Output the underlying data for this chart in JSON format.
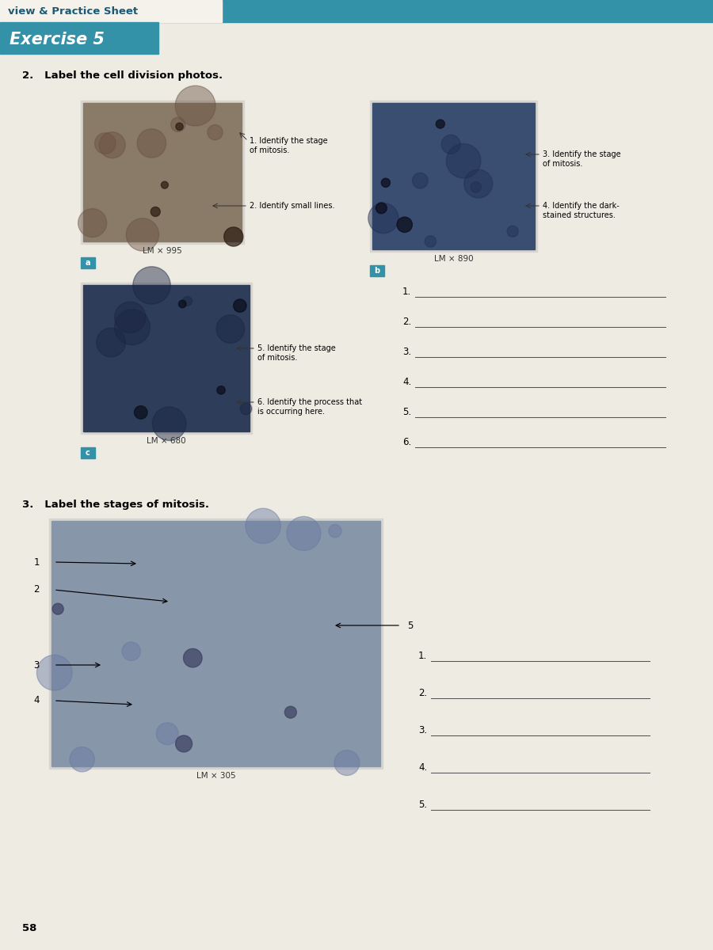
{
  "page_bg": "#eeebe3",
  "header_bg": "#3492a8",
  "header_text": "view & Practice Sheet",
  "exercise_text": "Exercise 5",
  "section2_title": "2.   Label the cell division photos.",
  "section3_title": "3.   Label the stages of mitosis.",
  "img_a_label": "LM × 995",
  "img_b_label": "LM × 890",
  "img_c_label": "LM × 680",
  "img_d_label": "LM × 305",
  "label_a": "a",
  "label_b": "b",
  "label_c": "c",
  "ann_a1": "1. Identify the stage\nof mitosis.",
  "ann_a2": "2. Identify small lines.",
  "ann_b3": "3. Identify the stage\nof mitosis.",
  "ann_b4": "4. Identify the dark-\nstained structures.",
  "ann_c5": "5. Identify the stage\nof mitosis.",
  "ann_c6": "6. Identify the process that\nis occurring here.",
  "answer_lines_2": [
    "1.",
    "2.",
    "3.",
    "4.",
    "5.",
    "6."
  ],
  "answer_lines_3": [
    "1.",
    "2.",
    "3.",
    "4.",
    "5."
  ],
  "page_number": "58"
}
